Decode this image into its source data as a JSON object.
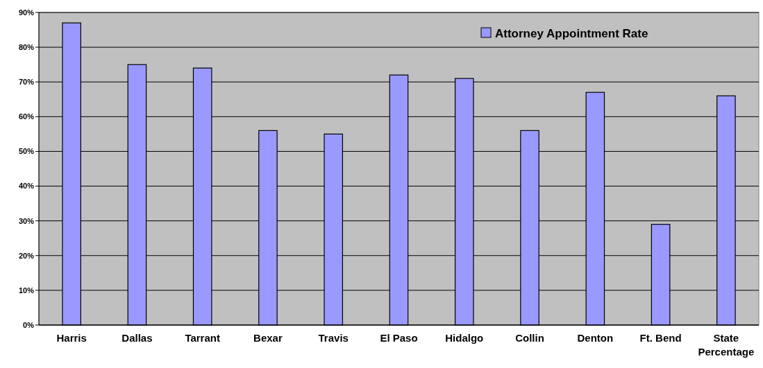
{
  "chart_data": {
    "type": "bar",
    "categories": [
      "Harris",
      "Dallas",
      "Tarrant",
      "Bexar",
      "Travis",
      "El Paso",
      "Hidalgo",
      "Collin",
      "Denton",
      "Ft. Bend",
      "State Percentage"
    ],
    "series": [
      {
        "name": "Attorney Appointment Rate",
        "color": "#9999ff",
        "values": [
          0.87,
          0.75,
          0.74,
          0.56,
          0.55,
          0.72,
          0.71,
          0.56,
          0.67,
          0.29,
          0.66
        ]
      }
    ],
    "ylim": [
      0,
      0.9
    ],
    "yticks": [
      {
        "value": 0,
        "label": "0%"
      },
      {
        "value": 0.1,
        "label": "10%"
      },
      {
        "value": 0.2,
        "label": "20%"
      },
      {
        "value": 0.3,
        "label": "30%"
      },
      {
        "value": 0.4,
        "label": "40%"
      },
      {
        "value": 0.5,
        "label": "50%"
      },
      {
        "value": 0.6,
        "label": "60%"
      },
      {
        "value": 0.7,
        "label": "70%"
      },
      {
        "value": 0.8,
        "label": "80%"
      },
      {
        "value": 0.9,
        "label": "90%"
      }
    ],
    "grid": "y",
    "legend": "top right"
  }
}
